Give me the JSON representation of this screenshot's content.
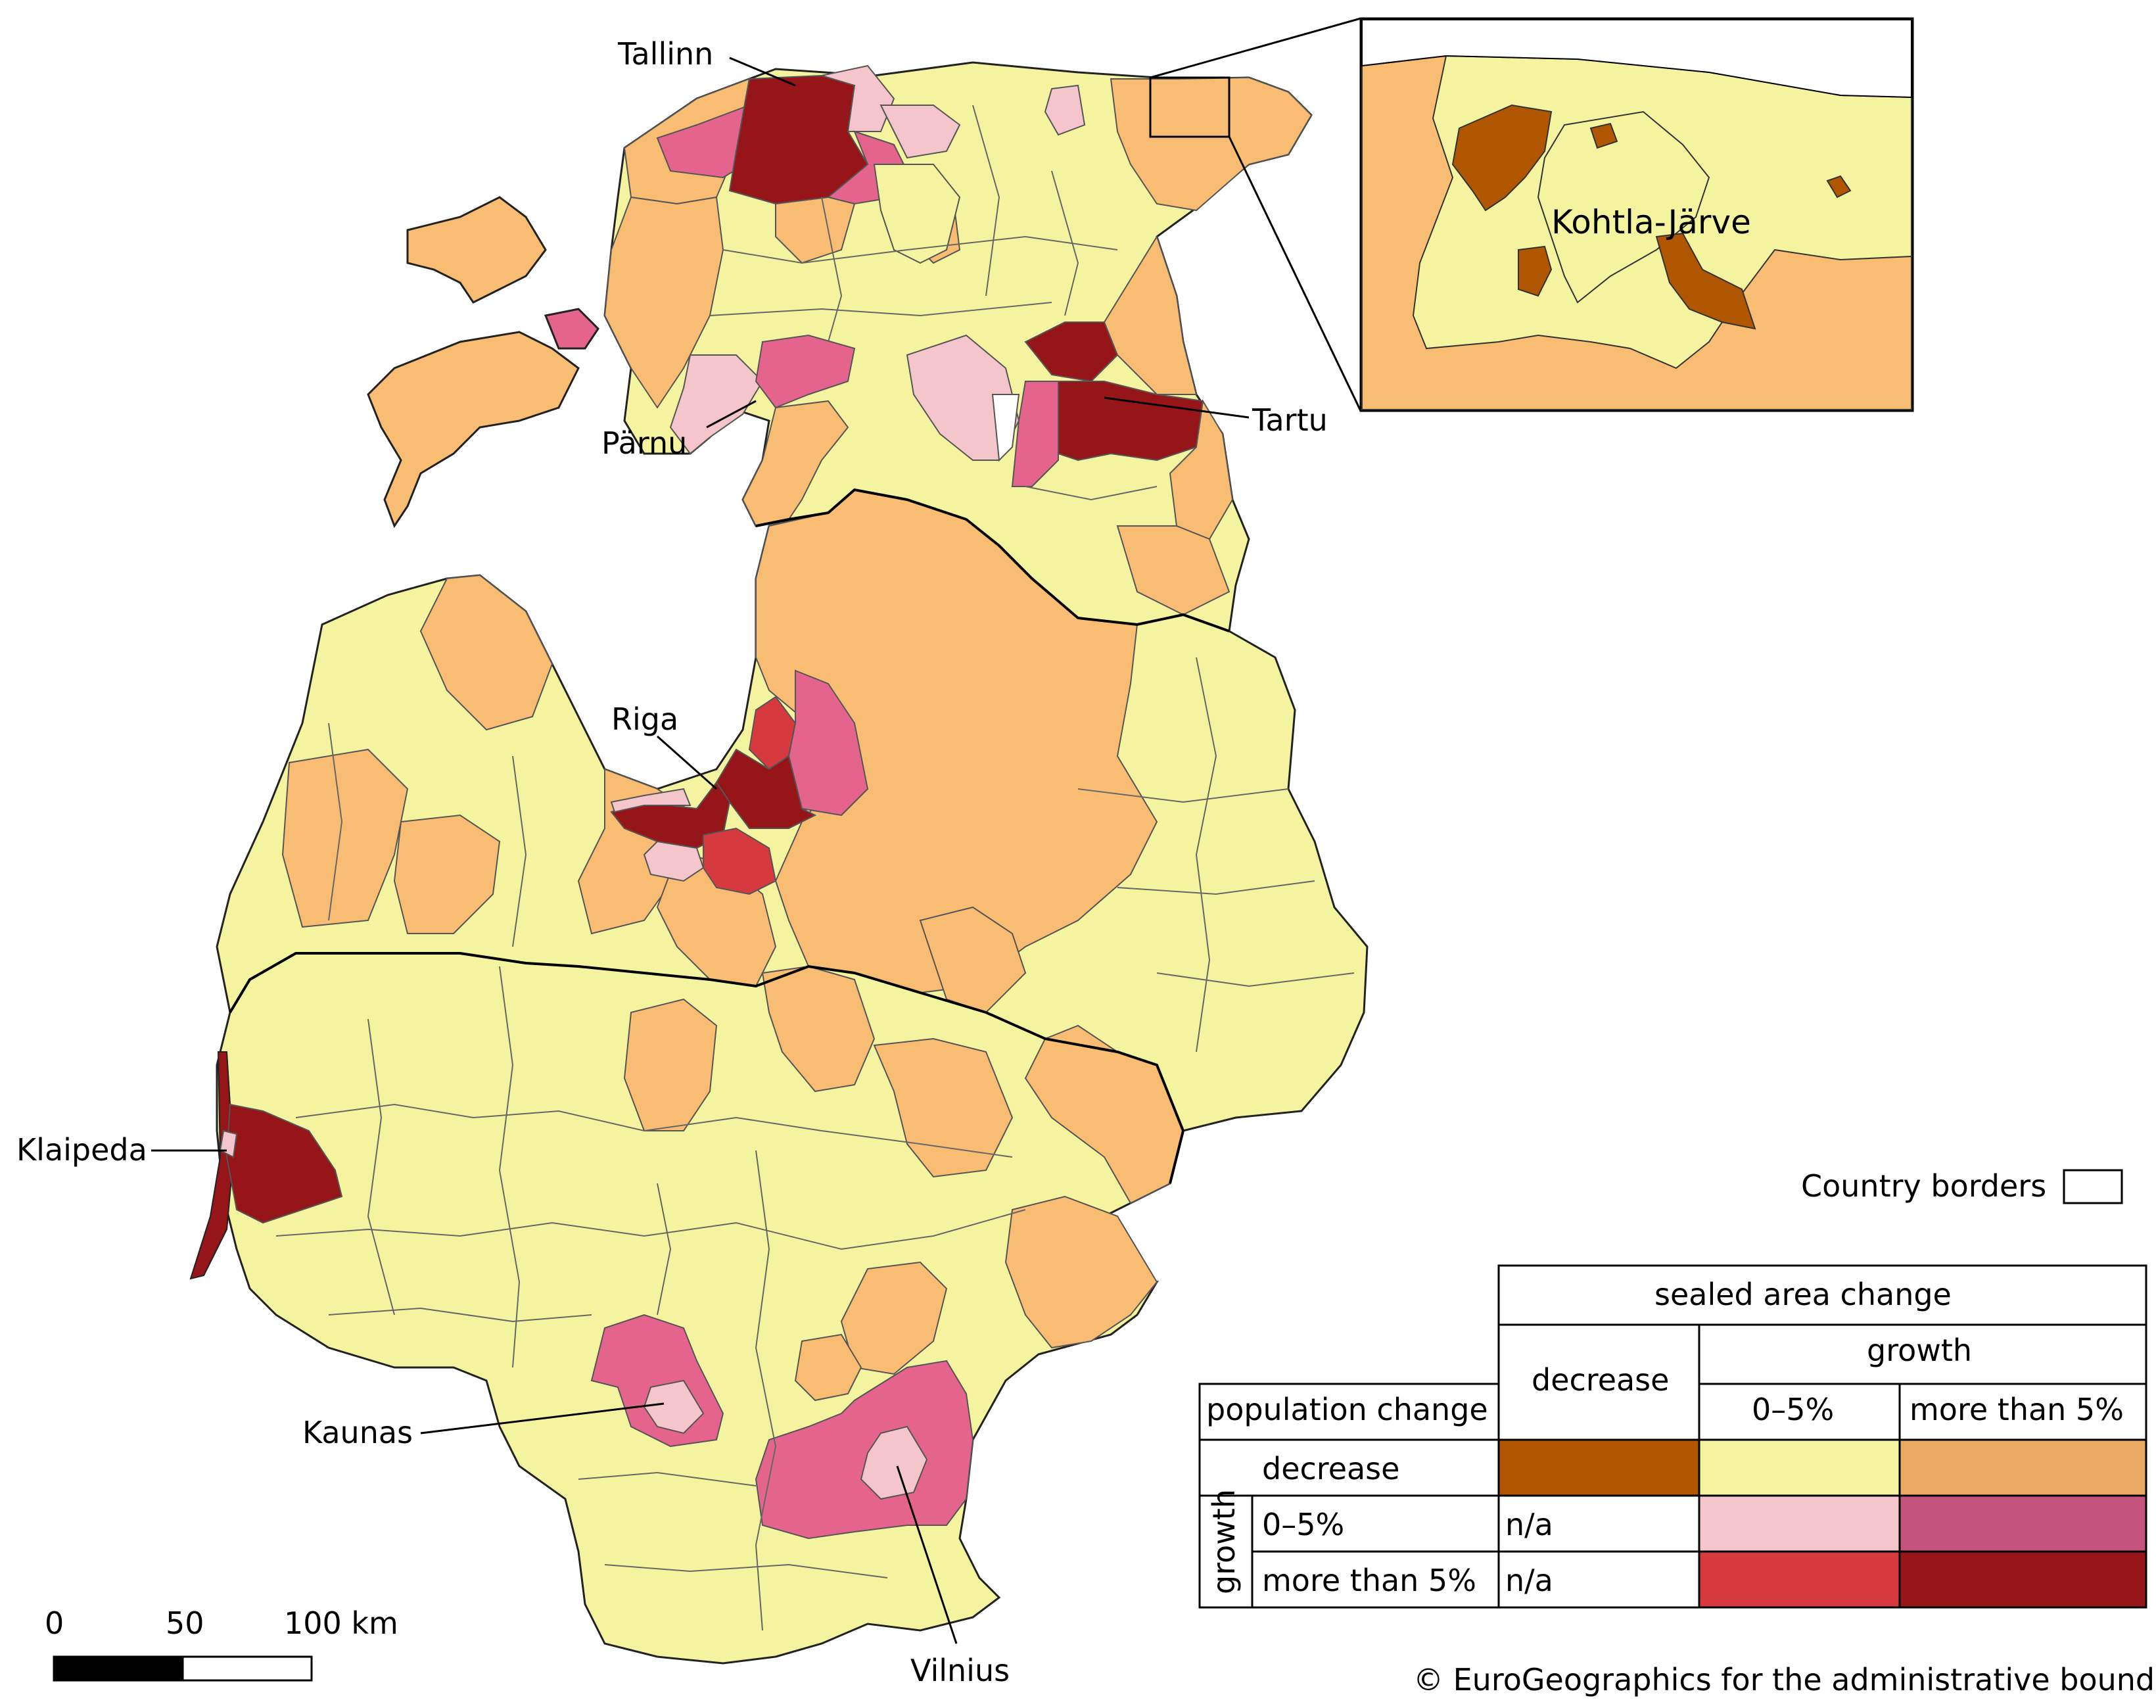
{
  "inset": {
    "city": "Kohtla-Järve"
  },
  "cities": {
    "tallinn": "Tallinn",
    "parnu": "Pärnu",
    "tartu": "Tartu",
    "riga": "Riga",
    "klaipeda": "Klaipeda",
    "kaunas": "Kaunas",
    "vilnius": "Vilnius"
  },
  "legend": {
    "borders_label": "Country borders",
    "sealed_header": "sealed area change",
    "decrease": "decrease",
    "growth": "growth",
    "pct_0_5": "0–5%",
    "pct_more_5": "more than 5%",
    "population_change": "population change",
    "pop_decrease": "decrease",
    "pop_growth": "growth",
    "pop_0_5": "0–5%",
    "pop_more_5": "more than 5%",
    "na1": "n/a",
    "na2": "n/a"
  },
  "colors": {
    "pop_dec_seal_dec": "#b05500",
    "pop_dec_seal_0_5": "#f4f4a0",
    "pop_dec_seal_gt5": "#f8bc72",
    "pop_0_5_seal_0_5": "#f4c5cb",
    "pop_0_5_seal_gt5": "#e5648d",
    "pop_gt5_seal_0_5": "#d73a3e",
    "pop_gt5_seal_gt5": "#961518",
    "no_data": "#ffffff"
  },
  "scalebar": {
    "ticks": [
      "0",
      "50",
      "100 km"
    ]
  },
  "copyright": "© EuroGeographics for the administrative boundaries"
}
